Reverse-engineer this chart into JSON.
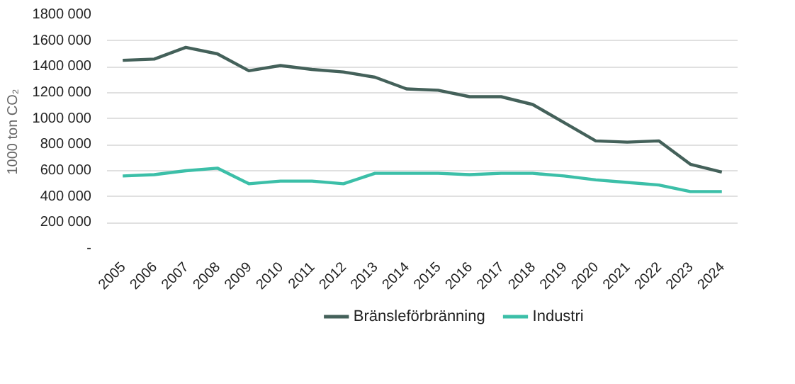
{
  "chart_data": {
    "type": "line",
    "ylabel": "1000 ton CO₂",
    "categories": [
      "2005",
      "2006",
      "2007",
      "2008",
      "2009",
      "2010",
      "2011",
      "2012",
      "2013",
      "2014",
      "2015",
      "2016",
      "2017",
      "2018",
      "2019",
      "2020",
      "2021",
      "2022",
      "2023",
      "2024"
    ],
    "series": [
      {
        "name": "Bränsleförbränning",
        "color": "#44615a",
        "values": [
          1450000,
          1460000,
          1550000,
          1500000,
          1370000,
          1410000,
          1380000,
          1360000,
          1320000,
          1230000,
          1220000,
          1170000,
          1170000,
          1110000,
          970000,
          830000,
          820000,
          830000,
          650000,
          590000
        ]
      },
      {
        "name": "Industri",
        "color": "#3cbfa8",
        "values": [
          560000,
          570000,
          600000,
          620000,
          500000,
          520000,
          520000,
          500000,
          580000,
          580000,
          580000,
          570000,
          580000,
          580000,
          560000,
          530000,
          510000,
          490000,
          440000,
          440000
        ]
      }
    ],
    "ylim": [
      0,
      1800000
    ],
    "yticks": [
      {
        "value": 0,
        "label": "-"
      },
      {
        "value": 200000,
        "label": "200 000"
      },
      {
        "value": 400000,
        "label": "400 000"
      },
      {
        "value": 600000,
        "label": "600 000"
      },
      {
        "value": 800000,
        "label": "800 000"
      },
      {
        "value": 1000000,
        "label": "1000 000"
      },
      {
        "value": 1200000,
        "label": "1200 000"
      },
      {
        "value": 1400000,
        "label": "1400 000"
      },
      {
        "value": 1600000,
        "label": "1600 000"
      },
      {
        "value": 1800000,
        "label": "1800 000"
      }
    ],
    "grid": "y",
    "legend": "bottom",
    "marker": "none",
    "line_style": "solid"
  }
}
